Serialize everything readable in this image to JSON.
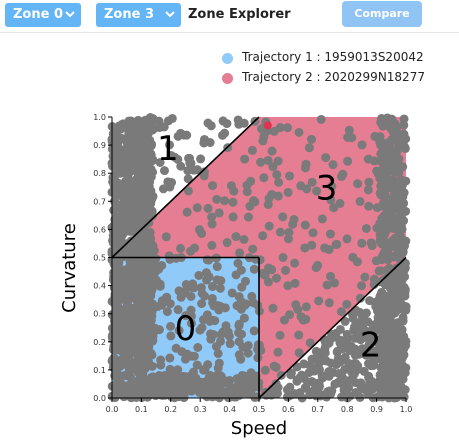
{
  "toolbar": {
    "zone_select_a": "Zone 0",
    "zone_select_b": "Zone 3",
    "title": "Zone Explorer",
    "compare_label": "Compare"
  },
  "legend": {
    "items": [
      {
        "label": "Trajectory 1 : 1959013S20042",
        "color": "#90caf9"
      },
      {
        "label": "Trajectory 2 : 2020299N18277",
        "color": "#e57d93"
      }
    ]
  },
  "chart_data": {
    "type": "scatter",
    "xlabel": "Speed",
    "ylabel": "Curvature",
    "xlim": [
      0,
      1
    ],
    "ylim": [
      0,
      1
    ],
    "xticks": [
      "0.0",
      "0.1",
      "0.2",
      "0.3",
      "0.4",
      "0.5",
      "0.6",
      "0.7",
      "0.8",
      "0.9",
      "1.0"
    ],
    "yticks": [
      "0.0",
      "0.1",
      "0.2",
      "0.3",
      "0.4",
      "0.5",
      "0.6",
      "0.7",
      "0.8",
      "0.9",
      "1.0"
    ],
    "zones": [
      {
        "label": "0",
        "color": "#90caf9",
        "polygon": [
          [
            0,
            0
          ],
          [
            0.5,
            0
          ],
          [
            0.5,
            0.5
          ],
          [
            0,
            0.5
          ]
        ],
        "label_at": [
          0.5,
          0.25
        ]
      },
      {
        "label": "1",
        "polygon": [
          [
            0,
            0.5
          ],
          [
            0.5,
            1
          ],
          [
            0,
            1
          ]
        ],
        "label_at": [
          0.38,
          0.89
        ]
      },
      {
        "label": "2",
        "polygon": [
          [
            0.5,
            0
          ],
          [
            1,
            0
          ],
          [
            1,
            0.5
          ]
        ],
        "label_at": [
          0.9,
          0.19
        ]
      },
      {
        "label": "3",
        "color": "#e57d93",
        "polygon": [
          [
            0,
            0.5
          ],
          [
            0.5,
            0.5
          ],
          [
            0.5,
            0
          ],
          [
            1,
            0.5
          ],
          [
            1,
            1
          ],
          [
            0.5,
            1
          ]
        ],
        "label_at": [
          0.74,
          0.75
        ]
      }
    ],
    "point_color": "#7a7a7a",
    "marker_color": "#e0314f",
    "marker": [
      0.53,
      0.97
    ],
    "grid": false,
    "legend_position": "top-right"
  }
}
